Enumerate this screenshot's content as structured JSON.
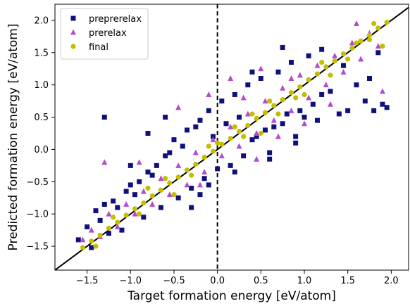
{
  "chart_data": {
    "type": "scatter",
    "xlabel": "Target formation energy [eV/atom]",
    "ylabel": "Predicted formation energy [eV/atom]",
    "xlim": [
      -1.87,
      2.2
    ],
    "ylim": [
      -1.87,
      2.25
    ],
    "xticks": [
      "−1.5",
      "−1.0",
      "−0.5",
      "0.0",
      "0.5",
      "1.0",
      "1.5",
      "2.0"
    ],
    "xtick_values": [
      -1.5,
      -1.0,
      -0.5,
      0.0,
      0.5,
      1.0,
      1.5,
      2.0
    ],
    "yticks": [
      "−1.5",
      "−1.0",
      "−0.5",
      "0.0",
      "0.5",
      "1.0",
      "1.5",
      "2.0"
    ],
    "ytick_values": [
      -1.5,
      -1.0,
      -0.5,
      0.0,
      0.5,
      1.0,
      1.5,
      2.0
    ],
    "grid": false,
    "legend_position": "top-left",
    "reference_lines": [
      {
        "kind": "diagonal",
        "style": "solid",
        "color": "#000000"
      },
      {
        "kind": "vertical",
        "x": 0.0,
        "style": "dashed",
        "color": "#000000"
      }
    ],
    "series": [
      {
        "name": "preprerelax",
        "marker": "square",
        "color": "#10107a",
        "points": [
          [
            -1.6,
            -1.4
          ],
          [
            -1.5,
            -1.2
          ],
          [
            -1.45,
            -1.52
          ],
          [
            -1.4,
            -0.95
          ],
          [
            -1.35,
            -1.1
          ],
          [
            -1.3,
            -0.85
          ],
          [
            -1.25,
            -1.3
          ],
          [
            -1.2,
            -0.8
          ],
          [
            -1.15,
            -0.9
          ],
          [
            -1.1,
            -1.25
          ],
          [
            -1.05,
            -0.65
          ],
          [
            -1.0,
            -0.55
          ],
          [
            -0.95,
            -0.7
          ],
          [
            -0.9,
            -0.5
          ],
          [
            -0.85,
            -1.05
          ],
          [
            -0.8,
            -0.35
          ],
          [
            -0.75,
            -0.4
          ],
          [
            -0.7,
            -0.25
          ],
          [
            -0.65,
            -0.9
          ],
          [
            -0.6,
            -0.1
          ],
          [
            -0.55,
            -0.05
          ],
          [
            -0.5,
            0.15
          ],
          [
            -0.45,
            -0.75
          ],
          [
            -0.4,
            0.05
          ],
          [
            -0.35,
            0.3
          ],
          [
            -0.3,
            -0.6
          ],
          [
            -0.25,
            0.35
          ],
          [
            -0.2,
            0.45
          ],
          [
            -0.15,
            -0.45
          ],
          [
            -0.1,
            0.6
          ],
          [
            -0.05,
            0.2
          ],
          [
            0.0,
            -0.3
          ],
          [
            0.05,
            0.75
          ],
          [
            0.1,
            0.4
          ],
          [
            0.15,
            -0.25
          ],
          [
            0.2,
            0.85
          ],
          [
            0.25,
            0.5
          ],
          [
            0.3,
            -0.1
          ],
          [
            0.35,
            1.0
          ],
          [
            0.4,
            0.15
          ],
          [
            0.45,
            0.2
          ],
          [
            0.5,
            1.1
          ],
          [
            0.55,
            0.3
          ],
          [
            0.6,
            -0.15
          ],
          [
            0.65,
            0.35
          ],
          [
            0.7,
            1.2
          ],
          [
            0.75,
            0.4
          ],
          [
            0.8,
            0.55
          ],
          [
            0.85,
            1.35
          ],
          [
            0.9,
            0.2
          ],
          [
            0.95,
            0.6
          ],
          [
            1.0,
            0.5
          ],
          [
            1.05,
            1.45
          ],
          [
            1.1,
            0.7
          ],
          [
            1.15,
            0.45
          ],
          [
            1.2,
            0.85
          ],
          [
            1.3,
            0.9
          ],
          [
            1.4,
            0.55
          ],
          [
            1.45,
            1.3
          ],
          [
            1.5,
            0.6
          ],
          [
            1.6,
            1.0
          ],
          [
            1.7,
            0.75
          ],
          [
            1.75,
            1.1
          ],
          [
            1.8,
            0.6
          ],
          [
            1.85,
            1.5
          ],
          [
            1.95,
            0.65
          ],
          [
            -1.3,
            0.5
          ],
          [
            -0.8,
            0.25
          ],
          [
            -0.6,
            0.5
          ],
          [
            -1.0,
            -0.25
          ],
          [
            0.75,
            1.58
          ],
          [
            1.9,
            0.7
          ],
          [
            -0.3,
            -0.9
          ],
          [
            -0.1,
            -0.55
          ],
          [
            0.6,
            -0.05
          ],
          [
            0.4,
            1.2
          ],
          [
            1.2,
            1.55
          ],
          [
            0.2,
            -0.35
          ],
          [
            -0.2,
            -0.7
          ],
          [
            0.9,
            0.1
          ]
        ]
      },
      {
        "name": "prerelax",
        "marker": "triangle",
        "color": "#b44cd1",
        "points": [
          [
            -1.55,
            -1.4
          ],
          [
            -1.45,
            -1.25
          ],
          [
            -1.35,
            -1.35
          ],
          [
            -1.25,
            -1.0
          ],
          [
            -1.15,
            -1.2
          ],
          [
            -1.05,
            -0.85
          ],
          [
            -0.95,
            -1.0
          ],
          [
            -0.85,
            -0.65
          ],
          [
            -0.75,
            -0.85
          ],
          [
            -0.65,
            -0.45
          ],
          [
            -0.55,
            -0.7
          ],
          [
            -0.45,
            -0.25
          ],
          [
            -0.35,
            -0.55
          ],
          [
            -0.25,
            -0.05
          ],
          [
            -0.15,
            -0.35
          ],
          [
            -0.05,
            0.15
          ],
          [
            0.05,
            -0.1
          ],
          [
            0.15,
            0.35
          ],
          [
            0.25,
            0.05
          ],
          [
            0.35,
            0.55
          ],
          [
            0.45,
            0.25
          ],
          [
            0.55,
            0.75
          ],
          [
            0.65,
            0.45
          ],
          [
            0.75,
            0.95
          ],
          [
            0.85,
            0.6
          ],
          [
            0.95,
            1.15
          ],
          [
            1.05,
            0.8
          ],
          [
            1.15,
            1.3
          ],
          [
            1.25,
            1.0
          ],
          [
            1.35,
            1.45
          ],
          [
            1.45,
            1.2
          ],
          [
            1.55,
            1.65
          ],
          [
            1.65,
            1.4
          ],
          [
            1.75,
            1.8
          ],
          [
            1.85,
            1.6
          ],
          [
            -1.3,
            -0.2
          ],
          [
            -0.45,
            0.65
          ],
          [
            -0.1,
            0.85
          ],
          [
            0.15,
            1.1
          ],
          [
            0.3,
            0.8
          ],
          [
            0.5,
            1.25
          ],
          [
            -0.9,
            -0.2
          ],
          [
            -0.2,
            -0.55
          ],
          [
            0.45,
            -0.15
          ],
          [
            0.7,
            0.2
          ],
          [
            1.0,
            0.4
          ],
          [
            1.3,
            0.7
          ],
          [
            1.9,
            0.9
          ],
          [
            1.6,
            1.95
          ],
          [
            0.85,
            1.1
          ]
        ]
      },
      {
        "name": "final",
        "marker": "circle",
        "color": "#c4be00",
        "points": [
          [
            -1.55,
            -1.52
          ],
          [
            -1.45,
            -1.42
          ],
          [
            -1.35,
            -1.33
          ],
          [
            -1.25,
            -1.22
          ],
          [
            -1.15,
            -1.13
          ],
          [
            -1.05,
            -1.02
          ],
          [
            -0.95,
            -0.92
          ],
          [
            -0.85,
            -0.83
          ],
          [
            -0.75,
            -0.72
          ],
          [
            -0.65,
            -0.63
          ],
          [
            -0.55,
            -0.52
          ],
          [
            -0.45,
            -0.43
          ],
          [
            -0.35,
            -0.32
          ],
          [
            -0.25,
            -0.23
          ],
          [
            -0.15,
            -0.12
          ],
          [
            -0.05,
            -0.03
          ],
          [
            0.05,
            0.08
          ],
          [
            0.15,
            0.17
          ],
          [
            0.25,
            0.28
          ],
          [
            0.35,
            0.37
          ],
          [
            0.45,
            0.48
          ],
          [
            0.55,
            0.57
          ],
          [
            0.65,
            0.68
          ],
          [
            0.75,
            0.77
          ],
          [
            0.85,
            0.88
          ],
          [
            0.95,
            0.97
          ],
          [
            1.05,
            1.08
          ],
          [
            1.15,
            1.17
          ],
          [
            1.25,
            1.28
          ],
          [
            1.35,
            1.37
          ],
          [
            1.45,
            1.48
          ],
          [
            1.55,
            1.57
          ],
          [
            1.65,
            1.68
          ],
          [
            1.75,
            1.77
          ],
          [
            1.85,
            1.88
          ],
          [
            1.95,
            1.97
          ],
          [
            -1.2,
            -1.05
          ],
          [
            -0.9,
            -1.0
          ],
          [
            -0.6,
            -0.45
          ],
          [
            -0.3,
            -0.4
          ],
          [
            0.0,
            0.1
          ],
          [
            0.3,
            0.2
          ],
          [
            0.6,
            0.75
          ],
          [
            0.9,
            0.8
          ],
          [
            1.2,
            1.35
          ],
          [
            1.5,
            1.4
          ],
          [
            1.8,
            1.95
          ],
          [
            0.5,
            0.25
          ],
          [
            -0.5,
            -0.7
          ],
          [
            1.0,
            0.85
          ],
          [
            1.75,
            1.7
          ],
          [
            1.9,
            1.6
          ],
          [
            0.4,
            0.55
          ],
          [
            -0.8,
            -0.6
          ],
          [
            -1.4,
            -1.5
          ],
          [
            0.7,
            0.55
          ],
          [
            1.3,
            1.15
          ],
          [
            -0.1,
            0.05
          ],
          [
            0.2,
            0.35
          ],
          [
            1.6,
            1.65
          ]
        ]
      }
    ]
  }
}
